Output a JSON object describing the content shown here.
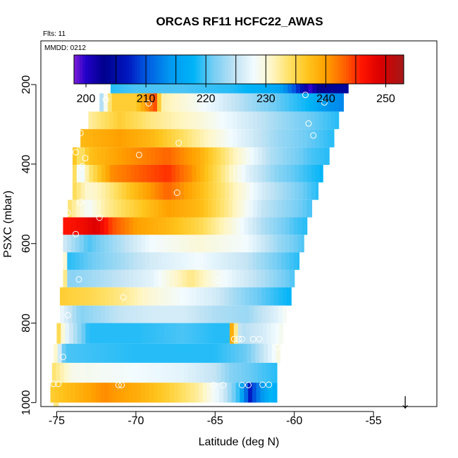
{
  "chart_data": {
    "type": "heatmap",
    "title": "ORCAS RF11 HCFC22_AWAS",
    "flights_label": "Flts: 11",
    "date_label": "MMDD: 0212",
    "xlabel": "Latitude (deg N)",
    "ylabel": "PSXC (mbar)",
    "xlim": [
      -76,
      -51
    ],
    "ylim": [
      1010,
      90
    ],
    "x_ticks": [
      -75,
      -70,
      -65,
      -60,
      -55
    ],
    "y_ticks": [
      200,
      400,
      600,
      800,
      1000
    ],
    "colorbar": {
      "range": [
        198,
        253
      ],
      "ticks": [
        200,
        210,
        220,
        230,
        240,
        250
      ],
      "boundaries": [
        205,
        210,
        215,
        220,
        225,
        230,
        235,
        240,
        245,
        250
      ],
      "colors": [
        {
          "value": 198,
          "color": "#7f1dd8"
        },
        {
          "value": 200,
          "color": "#2200c8"
        },
        {
          "value": 203,
          "color": "#00008c"
        },
        {
          "value": 207,
          "color": "#0018c0"
        },
        {
          "value": 210,
          "color": "#0058e0"
        },
        {
          "value": 214,
          "color": "#0098f0"
        },
        {
          "value": 218,
          "color": "#00b4f8"
        },
        {
          "value": 221,
          "color": "#70ccf4"
        },
        {
          "value": 225,
          "color": "#c4e4f4"
        },
        {
          "value": 228,
          "color": "#f2fbff"
        },
        {
          "value": 231,
          "color": "#fff6c4"
        },
        {
          "value": 234,
          "color": "#ffe064"
        },
        {
          "value": 237,
          "color": "#ffc41c"
        },
        {
          "value": 240,
          "color": "#ffa000"
        },
        {
          "value": 243,
          "color": "#ff6400"
        },
        {
          "value": 246,
          "color": "#ff1400"
        },
        {
          "value": 249,
          "color": "#dc0000"
        },
        {
          "value": 253,
          "color": "#a41818"
        }
      ]
    },
    "rows": [
      {
        "p_top": 176,
        "p_bot": 222,
        "lat_start": -71.6,
        "lat_end": -56.6,
        "profile": [
          [
            -71.6,
            219
          ],
          [
            -70,
            220
          ],
          [
            -67,
            220
          ],
          [
            -64,
            219
          ],
          [
            -61,
            216
          ],
          [
            -60,
            210
          ],
          [
            -59.5,
            206
          ],
          [
            -59.1,
            199
          ],
          [
            -58.5,
            203
          ],
          [
            -57,
            204
          ]
        ]
      },
      {
        "p_top": 222,
        "p_bot": 268,
        "lat_start": -72.3,
        "lat_end": -56.9,
        "profile": [
          [
            -72.3,
            222
          ],
          [
            -71.5,
            236
          ],
          [
            -70,
            236
          ],
          [
            -69.4,
            240
          ],
          [
            -68.8,
            244
          ],
          [
            -68.4,
            232
          ],
          [
            -65,
            227
          ],
          [
            -62,
            222
          ],
          [
            -59,
            218
          ],
          [
            -58,
            214
          ],
          [
            -57,
            213
          ]
        ]
      },
      {
        "p_top": 268,
        "p_bot": 312,
        "lat_start": -73,
        "lat_end": -57.2,
        "profile": [
          [
            -73,
            232
          ],
          [
            -71,
            236
          ],
          [
            -69,
            233
          ],
          [
            -66,
            230
          ],
          [
            -63,
            226
          ],
          [
            -60,
            222
          ],
          [
            -57.2,
            219
          ]
        ]
      },
      {
        "p_top": 312,
        "p_bot": 358,
        "lat_start": -73.5,
        "lat_end": -57.5,
        "profile": [
          [
            -73.5,
            238
          ],
          [
            -71,
            240
          ],
          [
            -69,
            238
          ],
          [
            -67,
            234
          ],
          [
            -64,
            228
          ],
          [
            -61,
            223
          ],
          [
            -57.5,
            219
          ]
        ]
      },
      {
        "p_top": 358,
        "p_bot": 402,
        "lat_start": -74,
        "lat_end": -57.8,
        "profile": [
          [
            -74,
            238
          ],
          [
            -73.5,
            233
          ],
          [
            -73,
            237
          ],
          [
            -72.5,
            238
          ],
          [
            -71,
            240
          ],
          [
            -68,
            243
          ],
          [
            -66,
            239
          ],
          [
            -64,
            232
          ],
          [
            -61.5,
            224
          ],
          [
            -59,
            220
          ],
          [
            -57.8,
            219
          ]
        ]
      },
      {
        "p_top": 402,
        "p_bot": 446,
        "lat_start": -74,
        "lat_end": -58.2,
        "profile": [
          [
            -74,
            237
          ],
          [
            -73.5,
            226
          ],
          [
            -73,
            233
          ],
          [
            -71.5,
            241
          ],
          [
            -70,
            243
          ],
          [
            -68,
            245
          ],
          [
            -66.5,
            241
          ],
          [
            -65,
            235
          ],
          [
            -63,
            227
          ],
          [
            -61,
            222
          ],
          [
            -58.2,
            218
          ]
        ]
      },
      {
        "p_top": 446,
        "p_bot": 490,
        "lat_start": -74,
        "lat_end": -58.5,
        "profile": [
          [
            -74,
            235
          ],
          [
            -73,
            230
          ],
          [
            -72,
            232
          ],
          [
            -70,
            238
          ],
          [
            -68,
            243
          ],
          [
            -66,
            238
          ],
          [
            -64,
            232
          ],
          [
            -62,
            226
          ],
          [
            -60,
            222
          ],
          [
            -58.5,
            219
          ]
        ]
      },
      {
        "p_top": 490,
        "p_bot": 534,
        "lat_start": -74.3,
        "lat_end": -58.9,
        "profile": [
          [
            -74.3,
            234
          ],
          [
            -73,
            228
          ],
          [
            -72,
            232
          ],
          [
            -70,
            236
          ],
          [
            -68,
            240
          ],
          [
            -66,
            238
          ],
          [
            -64,
            232
          ],
          [
            -62,
            225
          ],
          [
            -59,
            220
          ]
        ]
      },
      {
        "p_top": 534,
        "p_bot": 578,
        "lat_start": -74.6,
        "lat_end": -59.2,
        "profile": [
          [
            -74.6,
            246
          ],
          [
            -73.5,
            247
          ],
          [
            -72.5,
            249
          ],
          [
            -71.5,
            244
          ],
          [
            -70,
            240
          ],
          [
            -68,
            238
          ],
          [
            -66,
            235
          ],
          [
            -64,
            230
          ],
          [
            -62,
            224
          ],
          [
            -60,
            220
          ],
          [
            -59.2,
            219
          ]
        ]
      },
      {
        "p_top": 578,
        "p_bot": 622,
        "lat_start": -74.6,
        "lat_end": -59.4,
        "profile": [
          [
            -74.6,
            226
          ],
          [
            -73,
            220
          ],
          [
            -71,
            224
          ],
          [
            -69,
            228
          ],
          [
            -66,
            230
          ],
          [
            -63,
            228
          ],
          [
            -61,
            223
          ],
          [
            -59.4,
            220
          ]
        ]
      },
      {
        "p_top": 622,
        "p_bot": 666,
        "lat_start": -74.6,
        "lat_end": -59.7,
        "profile": [
          [
            -74.6,
            239
          ],
          [
            -74.3,
            219
          ],
          [
            -72,
            222
          ],
          [
            -69,
            226
          ],
          [
            -66,
            228
          ],
          [
            -63,
            225
          ],
          [
            -61,
            221
          ],
          [
            -59.7,
            219
          ]
        ]
      },
      {
        "p_top": 666,
        "p_bot": 710,
        "lat_start": -74.6,
        "lat_end": -60,
        "profile": [
          [
            -74.6,
            238
          ],
          [
            -74.2,
            222
          ],
          [
            -72,
            224
          ],
          [
            -69,
            227
          ],
          [
            -66.5,
            233
          ],
          [
            -65,
            229
          ],
          [
            -62,
            224
          ],
          [
            -60,
            220
          ]
        ]
      },
      {
        "p_top": 710,
        "p_bot": 756,
        "lat_start": -74.8,
        "lat_end": -60.2,
        "profile": [
          [
            -74.8,
            236
          ],
          [
            -73,
            235
          ],
          [
            -71,
            233
          ],
          [
            -69,
            230
          ],
          [
            -67,
            228
          ],
          [
            -65,
            226
          ],
          [
            -63,
            222
          ],
          [
            -61,
            219
          ],
          [
            -60.2,
            218
          ]
        ]
      },
      {
        "p_top": 756,
        "p_bot": 800,
        "lat_start": -74.8,
        "lat_end": -60.5,
        "profile": [
          [
            -74.8,
            228
          ],
          [
            -73.5,
            222
          ],
          [
            -71,
            225
          ],
          [
            -69,
            226
          ],
          [
            -67,
            226
          ],
          [
            -65,
            224
          ],
          [
            -63,
            223
          ],
          [
            -61,
            227
          ],
          [
            -60.5,
            229
          ]
        ]
      },
      {
        "p_top": 800,
        "p_bot": 852,
        "lat_start": -75,
        "lat_end": -60.7,
        "profile": [
          [
            -75,
            237
          ],
          [
            -74.5,
            228
          ],
          [
            -73,
            219
          ],
          [
            -70,
            219
          ],
          [
            -67,
            220
          ],
          [
            -65,
            219
          ],
          [
            -64.2,
            219
          ],
          [
            -64,
            240
          ],
          [
            -63.8,
            236
          ],
          [
            -63.4,
            224
          ],
          [
            -62,
            226
          ],
          [
            -60.7,
            229
          ]
        ]
      },
      {
        "p_top": 852,
        "p_bot": 900,
        "lat_start": -75.2,
        "lat_end": -60.9,
        "profile": [
          [
            -75.2,
            233
          ],
          [
            -74.5,
            220
          ],
          [
            -70,
            219
          ],
          [
            -65,
            219
          ],
          [
            -63,
            221
          ],
          [
            -61.5,
            227
          ],
          [
            -60.9,
            230
          ]
        ]
      },
      {
        "p_top": 900,
        "p_bot": 950,
        "lat_start": -75.3,
        "lat_end": -61.1,
        "profile": [
          [
            -75.3,
            234
          ],
          [
            -74,
            229
          ],
          [
            -70,
            228
          ],
          [
            -67,
            227
          ],
          [
            -65,
            225
          ],
          [
            -64,
            222
          ],
          [
            -63,
            221
          ],
          [
            -61.1,
            219
          ]
        ]
      },
      {
        "p_top": 950,
        "p_bot": 1000,
        "lat_start": -75.4,
        "lat_end": -61.1,
        "profile": [
          [
            -75.4,
            236
          ],
          [
            -74,
            238
          ],
          [
            -72,
            241
          ],
          [
            -70,
            239
          ],
          [
            -68,
            236
          ],
          [
            -66,
            232
          ],
          [
            -64.5,
            226
          ],
          [
            -63.5,
            219
          ],
          [
            -62.8,
            207
          ],
          [
            -62.3,
            212
          ],
          [
            -61.5,
            218
          ],
          [
            -61.1,
            217
          ]
        ]
      },
      {
        "p_top": 1000,
        "p_bot": 1010,
        "lat_start": -75.2,
        "lat_end": -74.9,
        "profile": [
          [
            -75.2,
            233
          ],
          [
            -74.9,
            233
          ]
        ]
      }
    ],
    "sample_points": [
      [
        -71.5,
        181
      ],
      [
        -70.3,
        180
      ],
      [
        -65.2,
        180
      ],
      [
        -59.4,
        182
      ],
      [
        -57.9,
        185
      ],
      [
        -57.5,
        187
      ],
      [
        -57.1,
        184
      ],
      [
        -56.8,
        181
      ],
      [
        -71.9,
        238
      ],
      [
        -69.2,
        247
      ],
      [
        -59.3,
        226
      ],
      [
        -58.1,
        245
      ],
      [
        -59.1,
        298
      ],
      [
        -58.8,
        328
      ],
      [
        -73.5,
        322
      ],
      [
        -67.3,
        347
      ],
      [
        -73.8,
        370
      ],
      [
        -73.2,
        385
      ],
      [
        -69.8,
        377
      ],
      [
        -73.4,
        406
      ],
      [
        -67.4,
        472
      ],
      [
        -73.5,
        496
      ],
      [
        -74.3,
        522
      ],
      [
        -72.3,
        535
      ],
      [
        -73.8,
        576
      ],
      [
        -73.6,
        690
      ],
      [
        -70.8,
        735
      ],
      [
        -74.3,
        780
      ],
      [
        -64.8,
        692
      ],
      [
        -63.8,
        840
      ],
      [
        -63.5,
        840
      ],
      [
        -63.3,
        840
      ],
      [
        -62.6,
        840
      ],
      [
        -62.2,
        840
      ],
      [
        -61.1,
        860
      ],
      [
        -74.6,
        885
      ],
      [
        -75.2,
        953
      ],
      [
        -74.9,
        953
      ],
      [
        -71.1,
        956
      ],
      [
        -70.9,
        956
      ],
      [
        -65.1,
        956
      ],
      [
        -64.5,
        956
      ],
      [
        -63.3,
        956
      ],
      [
        -62.9,
        956
      ],
      [
        -62.0,
        955
      ],
      [
        -61.6,
        955
      ]
    ],
    "arrow": {
      "lat": -53,
      "symbol": "↓"
    }
  }
}
